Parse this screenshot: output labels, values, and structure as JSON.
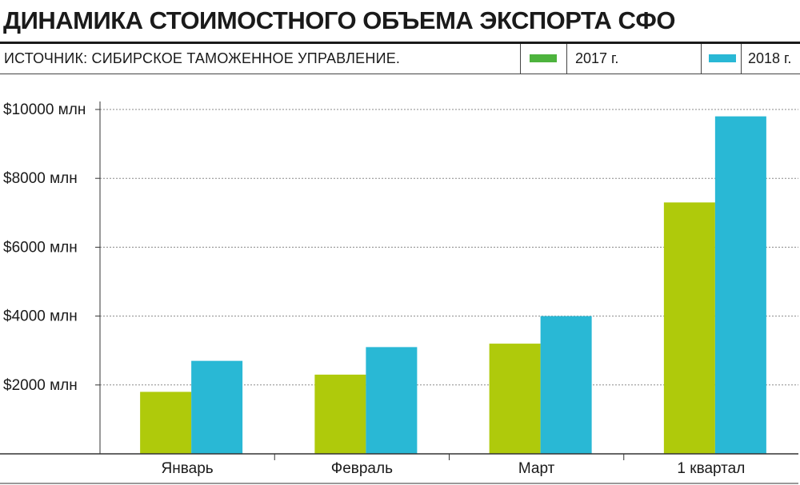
{
  "header": {
    "title": "ДИНАМИКА СТОИМОСТНОГО ОБЪЕМА ЭКСПОРТА СФО",
    "source": "ИСТОЧНИК: СИБИРСКОЕ ТАМОЖЕННОЕ УПРАВЛЕНИЕ."
  },
  "legend": [
    {
      "label": "2017 г.",
      "color": "#4db33d"
    },
    {
      "label": "2018 г.",
      "color": "#29b8d5"
    }
  ],
  "chart_data": {
    "type": "bar",
    "title": "ДИНАМИКА СТОИМОСТНОГО ОБЪЕМА ЭКСПОРТА СФО",
    "categories": [
      "Январь",
      "Февраль",
      "Март",
      "1 квартал"
    ],
    "series": [
      {
        "name": "2017 г.",
        "values": [
          1800,
          2300,
          3200,
          7300
        ],
        "color": "#afca0b"
      },
      {
        "name": "2018 г.",
        "values": [
          2700,
          3100,
          4000,
          9800
        ],
        "color": "#29b8d5"
      }
    ],
    "y_ticks": [
      2000,
      4000,
      6000,
      8000,
      10000
    ],
    "y_tick_labels": [
      "$2000 млн",
      "$4000 млн",
      "$6000 млн",
      "$8000 млн",
      "$10000 млн"
    ],
    "ylim": [
      0,
      10000
    ],
    "grid": true,
    "legend_position": "top-right"
  }
}
